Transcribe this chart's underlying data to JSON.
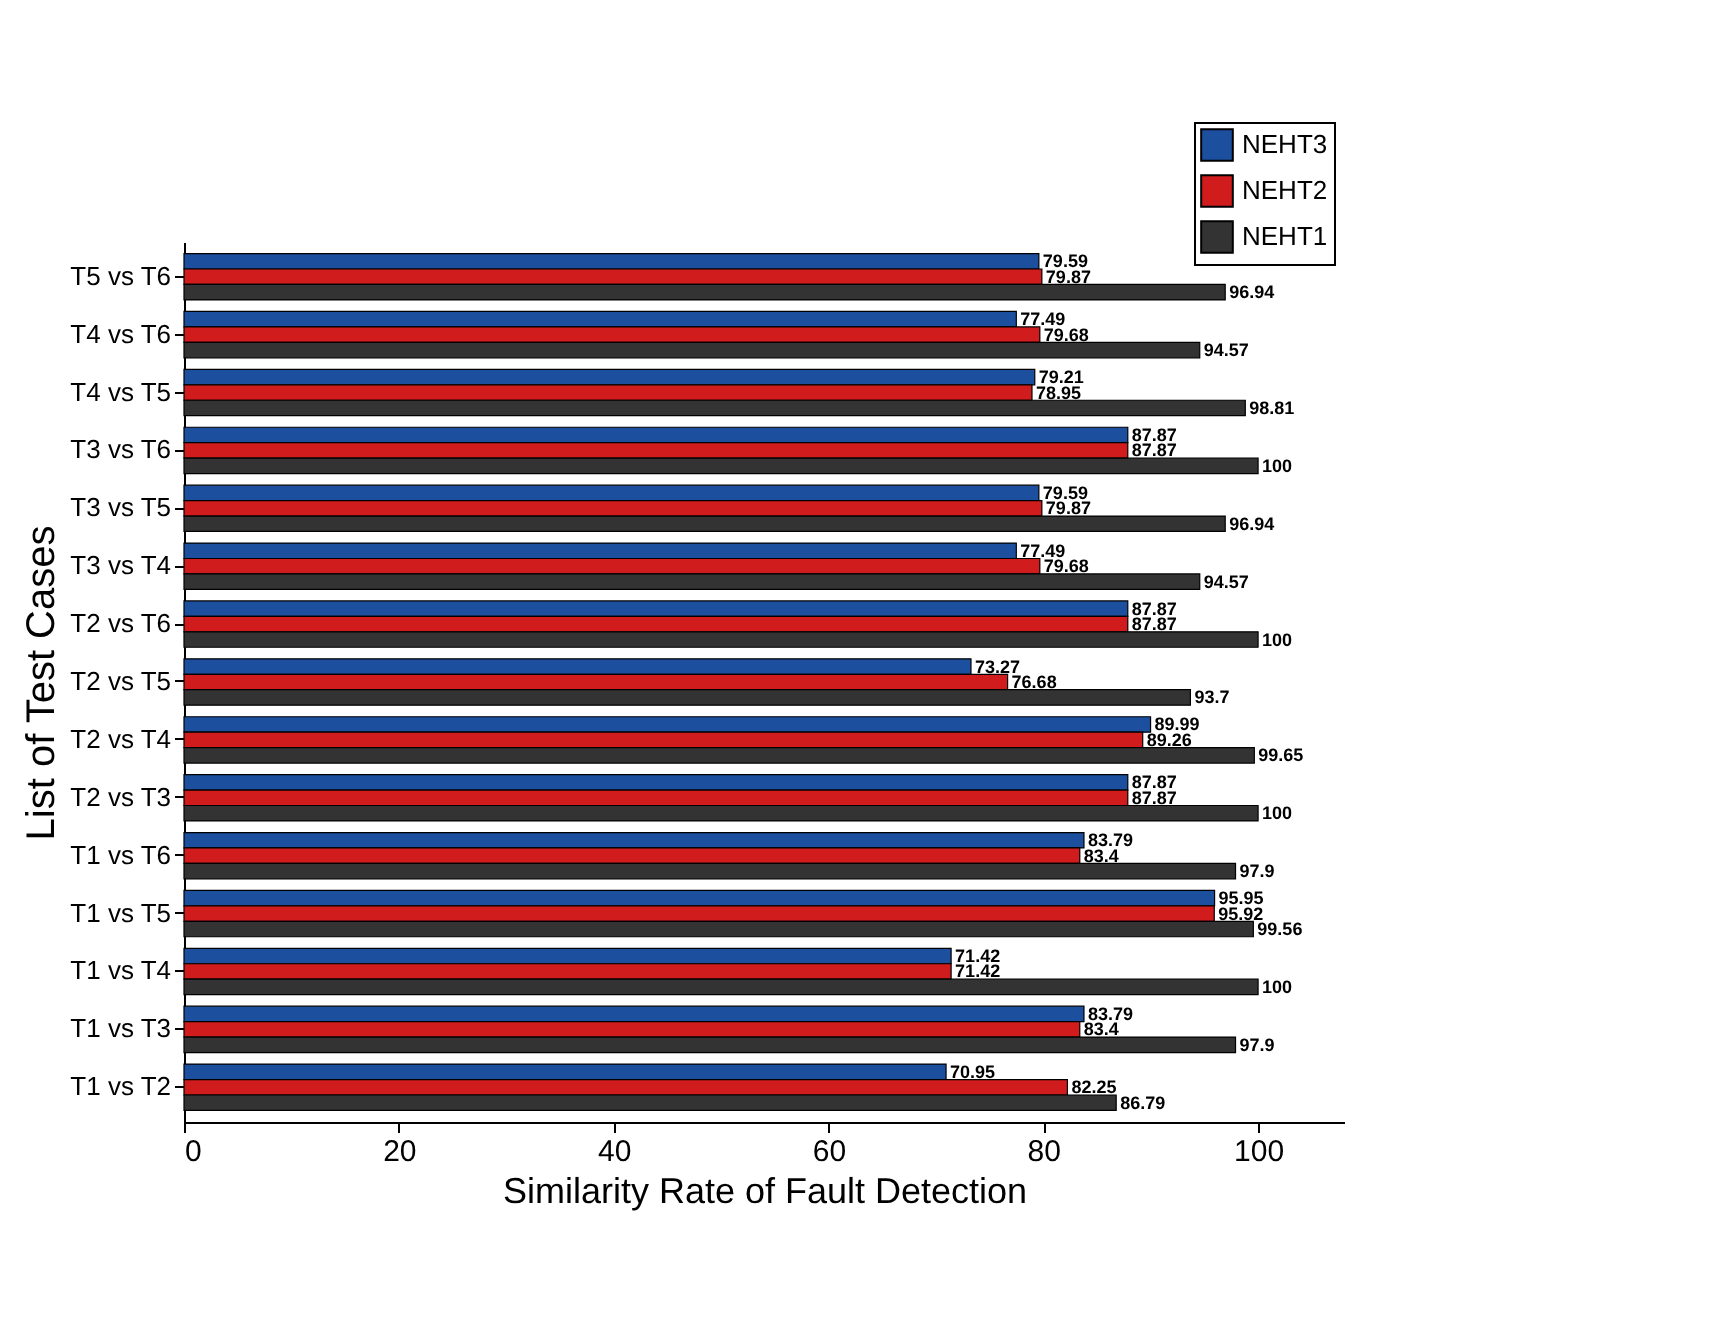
{
  "chart_data": {
    "type": "bar",
    "orientation": "horizontal",
    "xlabel": "Similarity Rate of Fault Detection",
    "ylabel": "List of Test Cases",
    "categories": [
      "T5 vs T6",
      "T4 vs T6",
      "T4 vs T5",
      "T3 vs T6",
      "T3 vs T5",
      "T3 vs T4",
      "T2 vs T6",
      "T2 vs T5",
      "T2 vs T4",
      "T2 vs T3",
      "T1 vs T6",
      "T1 vs T5",
      "T1 vs T4",
      "T1 vs T3",
      "T1 vs T2"
    ],
    "series": [
      {
        "name": "NEHT3",
        "color": "#1c4f9e",
        "values": [
          79.59,
          77.49,
          79.21,
          87.87,
          79.59,
          77.49,
          87.87,
          73.27,
          89.99,
          87.87,
          83.79,
          95.95,
          71.42,
          83.79,
          70.95
        ]
      },
      {
        "name": "NEHT2",
        "color": "#d01c1c",
        "values": [
          79.87,
          79.68,
          78.95,
          87.87,
          79.87,
          79.68,
          87.87,
          76.68,
          89.26,
          87.87,
          83.4,
          95.92,
          71.42,
          83.4,
          82.25
        ]
      },
      {
        "name": "NEHT1",
        "color": "#333333",
        "values": [
          96.94,
          94.57,
          98.81,
          100,
          96.94,
          94.57,
          100,
          93.7,
          99.65,
          100,
          97.9,
          99.56,
          100,
          97.9,
          86.79
        ]
      }
    ],
    "xlim": [
      0,
      108
    ],
    "xticks": [
      0,
      20,
      40,
      60,
      80,
      100
    ],
    "data_labels": true,
    "legend": "top right"
  }
}
